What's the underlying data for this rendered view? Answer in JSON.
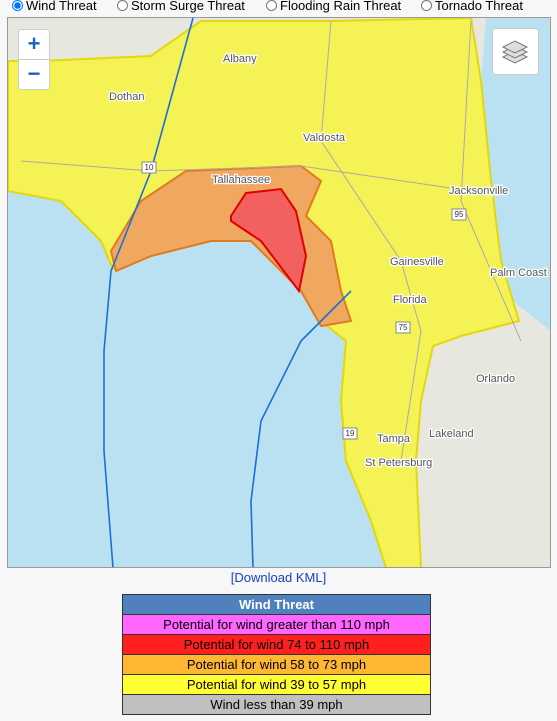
{
  "controls": {
    "options": [
      "Wind Threat",
      "Storm Surge Threat",
      "Flooding Rain Threat",
      "Tornado Threat"
    ]
  },
  "map": {
    "zoom_in": "+",
    "zoom_out": "−",
    "labels": [
      "Albany",
      "Dothan",
      "Valdosta",
      "Tallahassee",
      "Jacksonville",
      "Gainesville",
      "Palm Coast",
      "Florida",
      "Orlando",
      "Tampa",
      "Lakeland",
      "St Petersburg"
    ],
    "shields": [
      "10",
      "95",
      "75",
      "19"
    ]
  },
  "download_link": "[Download KML]",
  "legend": {
    "title": "Wind Threat",
    "rows": [
      "Potential for wind greater than 110 mph",
      "Potential for wind 74 to 110 mph",
      "Potential for wind 58 to 73 mph",
      "Potential for wind 39 to 57 mph",
      "Wind less than 39 mph"
    ]
  }
}
